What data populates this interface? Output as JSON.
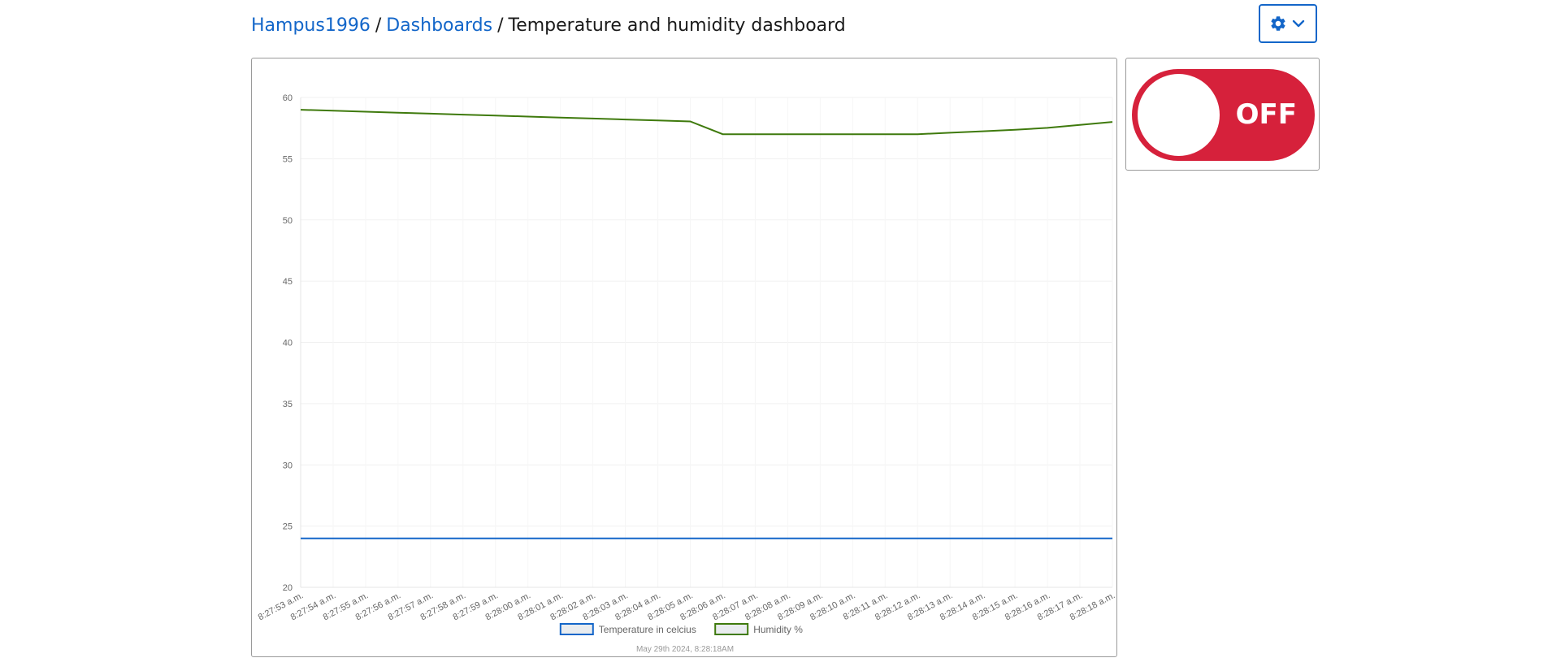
{
  "breadcrumb": {
    "user": "Hampus1996",
    "section": "Dashboards",
    "current": "Temperature and humidity dashboard",
    "separator": "/"
  },
  "settings_button": {
    "icon": "gear-icon",
    "dropdown_icon": "chevron-down-icon",
    "color": "#1366c9"
  },
  "toggle": {
    "label": "OFF",
    "state": "off",
    "color": "#d6213b"
  },
  "chart_data": {
    "type": "line",
    "categories": [
      "8:27:53 a.m.",
      "8:27:54 a.m.",
      "8:27:55 a.m.",
      "8:27:56 a.m.",
      "8:27:57 a.m.",
      "8:27:58 a.m.",
      "8:27:59 a.m.",
      "8:28:00 a.m.",
      "8:28:01 a.m.",
      "8:28:02 a.m.",
      "8:28:03 a.m.",
      "8:28:04 a.m.",
      "8:28:05 a.m.",
      "8:28:06 a.m.",
      "8:28:07 a.m.",
      "8:28:08 a.m.",
      "8:28:09 a.m.",
      "8:28:10 a.m.",
      "8:28:11 a.m.",
      "8:28:12 a.m.",
      "8:28:13 a.m.",
      "8:28:14 a.m.",
      "8:28:15 a.m.",
      "8:28:16 a.m.",
      "8:28:17 a.m.",
      "8:28:18 a.m."
    ],
    "series": [
      {
        "name": "Temperature in celcius",
        "color": "#1366c9",
        "values": [
          24,
          24,
          24,
          24,
          24,
          24,
          24,
          24,
          24,
          24,
          24,
          24,
          24,
          24,
          24,
          24,
          24,
          24,
          24,
          24,
          24,
          24,
          24,
          24,
          24,
          24
        ]
      },
      {
        "name": "Humidity %",
        "color": "#3f7a0d",
        "values": [
          59,
          58.92,
          58.84,
          58.76,
          58.68,
          58.6,
          58.52,
          58.44,
          58.36,
          58.28,
          58.2,
          58.12,
          58.04,
          57,
          57,
          57,
          57,
          57,
          57,
          57,
          57.12,
          57.24,
          57.36,
          57.52,
          57.76,
          58
        ]
      }
    ],
    "ylim": [
      20,
      60
    ],
    "yticks": [
      20,
      25,
      30,
      35,
      40,
      45,
      50,
      55,
      60
    ],
    "grid": true,
    "legend_position": "bottom",
    "timestamp": "May 29th 2024, 8:28:18AM",
    "title": "",
    "xlabel": "",
    "ylabel": ""
  }
}
